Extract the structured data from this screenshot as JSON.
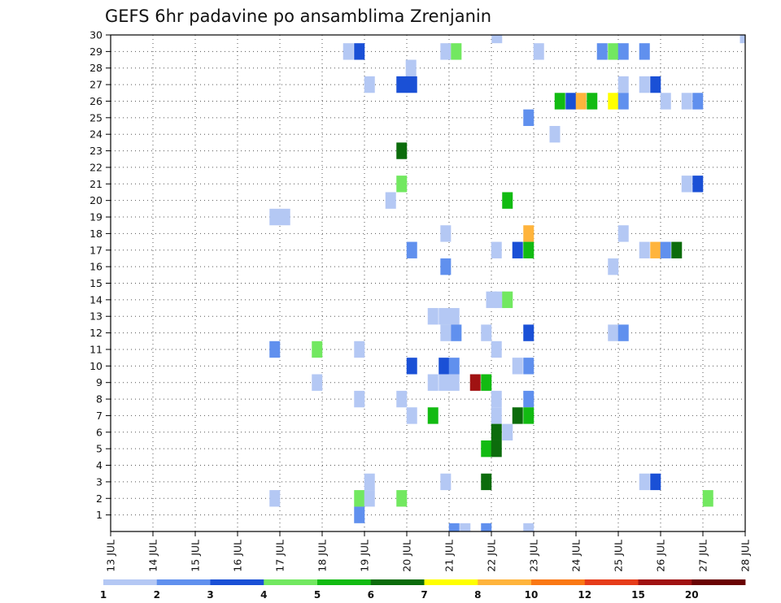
{
  "chart_data": {
    "type": "heatmap",
    "title": "GEFS 6hr padavine po ansamblima Zrenjanin",
    "xlabel": "",
    "ylabel": "",
    "x_ticks": [
      "13 JUL",
      "14 JUL",
      "15 JUL",
      "16 JUL",
      "17 JUL",
      "18 JUL",
      "19 JUL",
      "20 JUL",
      "21 JUL",
      "22 JUL",
      "23 JUL",
      "24 JUL",
      "25 JUL",
      "26 JUL",
      "27 JUL",
      "28 JUL"
    ],
    "xlim": [
      13,
      28
    ],
    "ylim": [
      0,
      30
    ],
    "y_ticks": [
      1,
      2,
      3,
      4,
      5,
      6,
      7,
      8,
      9,
      10,
      11,
      12,
      13,
      14,
      15,
      16,
      17,
      18,
      19,
      20,
      21,
      22,
      23,
      24,
      25,
      26,
      27,
      28,
      29,
      30
    ],
    "grid": true,
    "colorbar": {
      "levels": [
        "1",
        "2",
        "3",
        "4",
        "5",
        "6",
        "7",
        "8",
        "10",
        "12",
        "15",
        "20"
      ],
      "colors": [
        "#b4c8f4",
        "#6090ee",
        "#1a50d6",
        "#72e860",
        "#12bb12",
        "#0c6c0c",
        "#ffff00",
        "#ffb43c",
        "#fa7814",
        "#e63c1a",
        "#a01212",
        "#6a0404"
      ]
    },
    "cell_value_format": "[day_position, ensemble_member, color_class_index]",
    "cells": [
      [
        18.62,
        29,
        1
      ],
      [
        18.88,
        29,
        3
      ],
      [
        20.92,
        29,
        1
      ],
      [
        21.17,
        29,
        4
      ],
      [
        22.13,
        30,
        1
      ],
      [
        23.12,
        29,
        1
      ],
      [
        24.62,
        29,
        2
      ],
      [
        24.88,
        29,
        4
      ],
      [
        25.12,
        29,
        2
      ],
      [
        25.62,
        29,
        2
      ],
      [
        28.0,
        30,
        1
      ],
      [
        20.1,
        28,
        1
      ],
      [
        19.12,
        27,
        1
      ],
      [
        19.88,
        27,
        3
      ],
      [
        20.12,
        27,
        3
      ],
      [
        25.12,
        27,
        1
      ],
      [
        25.62,
        27,
        1
      ],
      [
        25.88,
        27,
        3
      ],
      [
        23.62,
        26,
        5
      ],
      [
        23.88,
        26,
        3
      ],
      [
        24.12,
        26,
        8
      ],
      [
        24.38,
        26,
        5
      ],
      [
        24.88,
        26,
        7
      ],
      [
        25.12,
        26,
        2
      ],
      [
        26.12,
        26,
        1
      ],
      [
        26.62,
        26,
        1
      ],
      [
        26.88,
        26,
        2
      ],
      [
        22.88,
        25,
        2
      ],
      [
        23.5,
        24,
        1
      ],
      [
        19.88,
        23,
        6
      ],
      [
        19.88,
        21,
        4
      ],
      [
        26.62,
        21,
        1
      ],
      [
        26.88,
        21,
        3
      ],
      [
        19.62,
        20,
        1
      ],
      [
        22.38,
        20,
        5
      ],
      [
        16.88,
        19,
        1
      ],
      [
        17.12,
        19,
        1
      ],
      [
        20.92,
        18,
        1
      ],
      [
        22.88,
        18,
        8
      ],
      [
        25.12,
        18,
        1
      ],
      [
        20.12,
        17,
        2
      ],
      [
        22.12,
        17,
        1
      ],
      [
        22.62,
        17,
        3
      ],
      [
        22.88,
        17,
        5
      ],
      [
        25.62,
        17,
        1
      ],
      [
        25.88,
        17,
        8
      ],
      [
        26.12,
        17,
        2
      ],
      [
        26.38,
        17,
        6
      ],
      [
        20.92,
        16,
        2
      ],
      [
        24.88,
        16,
        1
      ],
      [
        22.0,
        14,
        1
      ],
      [
        22.2,
        14,
        1
      ],
      [
        22.38,
        14,
        4
      ],
      [
        20.62,
        13,
        1
      ],
      [
        20.88,
        13,
        1
      ],
      [
        21.12,
        13,
        1
      ],
      [
        20.92,
        12,
        1
      ],
      [
        21.17,
        12,
        2
      ],
      [
        21.88,
        12,
        1
      ],
      [
        22.88,
        12,
        3
      ],
      [
        24.88,
        12,
        1
      ],
      [
        25.12,
        12,
        2
      ],
      [
        16.88,
        11,
        2
      ],
      [
        17.88,
        11,
        4
      ],
      [
        18.88,
        11,
        1
      ],
      [
        22.12,
        11,
        1
      ],
      [
        20.12,
        10,
        3
      ],
      [
        20.88,
        10,
        3
      ],
      [
        21.12,
        10,
        2
      ],
      [
        22.62,
        10,
        1
      ],
      [
        22.88,
        10,
        2
      ],
      [
        17.88,
        9,
        1
      ],
      [
        20.62,
        9,
        1
      ],
      [
        20.88,
        9,
        1
      ],
      [
        21.12,
        9,
        1
      ],
      [
        21.62,
        9,
        11
      ],
      [
        21.88,
        9,
        5
      ],
      [
        18.88,
        8,
        1
      ],
      [
        19.88,
        8,
        1
      ],
      [
        22.12,
        8,
        1
      ],
      [
        22.88,
        8,
        2
      ],
      [
        20.12,
        7,
        1
      ],
      [
        20.62,
        7,
        5
      ],
      [
        22.12,
        7,
        1
      ],
      [
        22.62,
        7,
        6
      ],
      [
        22.88,
        7,
        5
      ],
      [
        22.12,
        6,
        6
      ],
      [
        22.38,
        6,
        1
      ],
      [
        21.88,
        5,
        5
      ],
      [
        22.12,
        5,
        6
      ],
      [
        19.12,
        3,
        1
      ],
      [
        20.92,
        3,
        1
      ],
      [
        21.88,
        3,
        6
      ],
      [
        25.62,
        3,
        1
      ],
      [
        25.88,
        3,
        3
      ],
      [
        16.88,
        2,
        1
      ],
      [
        18.88,
        2,
        4
      ],
      [
        19.12,
        2,
        1
      ],
      [
        19.88,
        2,
        4
      ],
      [
        27.12,
        2,
        4
      ],
      [
        18.88,
        1,
        2
      ],
      [
        21.12,
        0,
        2
      ],
      [
        21.38,
        0,
        1
      ],
      [
        21.88,
        0,
        2
      ],
      [
        22.88,
        0,
        1
      ]
    ]
  }
}
